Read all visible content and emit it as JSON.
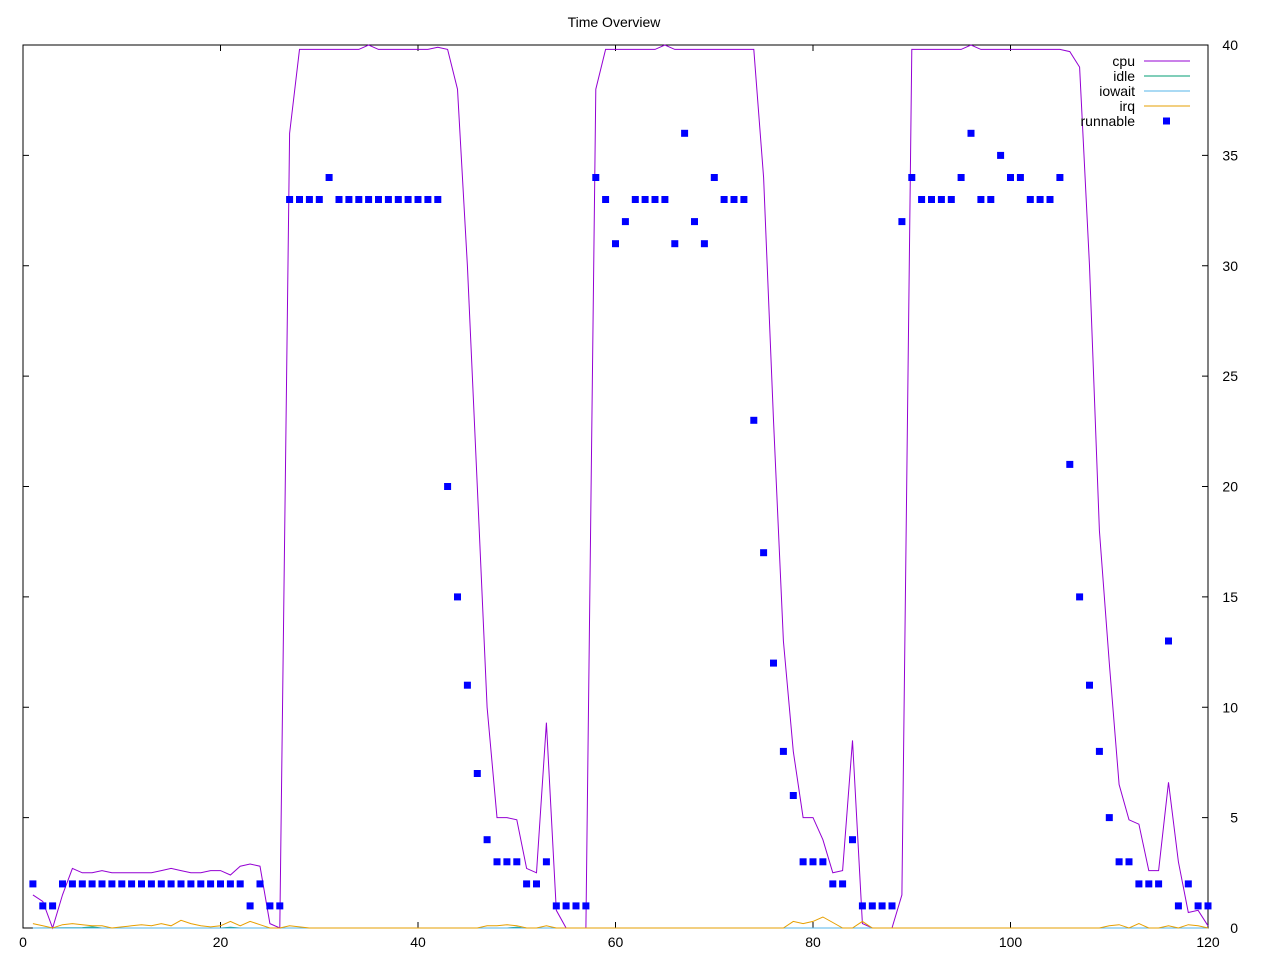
{
  "chart_data": {
    "type": "line",
    "title": "Time Overview",
    "xlim": [
      0,
      120
    ],
    "ylim": [
      0,
      40
    ],
    "x_ticks": [
      0,
      20,
      40,
      60,
      80,
      100,
      120
    ],
    "y_ticks": [
      0,
      5,
      10,
      15,
      20,
      25,
      30,
      35,
      40
    ],
    "y_axis_side": "right",
    "grid": false,
    "legend_position": "top-right",
    "series": [
      {
        "name": "cpu",
        "style": "line",
        "color": "#9400d3",
        "points": [
          [
            1,
            1.5
          ],
          [
            2,
            1.2
          ],
          [
            3,
            0
          ],
          [
            4,
            1.5
          ],
          [
            5,
            2.7
          ],
          [
            6,
            2.5
          ],
          [
            7,
            2.5
          ],
          [
            8,
            2.6
          ],
          [
            9,
            2.5
          ],
          [
            10,
            2.5
          ],
          [
            11,
            2.5
          ],
          [
            12,
            2.5
          ],
          [
            13,
            2.5
          ],
          [
            14,
            2.6
          ],
          [
            15,
            2.7
          ],
          [
            16,
            2.6
          ],
          [
            17,
            2.5
          ],
          [
            18,
            2.5
          ],
          [
            19,
            2.6
          ],
          [
            20,
            2.6
          ],
          [
            21,
            2.4
          ],
          [
            22,
            2.8
          ],
          [
            23,
            2.9
          ],
          [
            24,
            2.8
          ],
          [
            25,
            0.2
          ],
          [
            26,
            0
          ],
          [
            27,
            36
          ],
          [
            28,
            39.8
          ],
          [
            29,
            39.8
          ],
          [
            30,
            39.8
          ],
          [
            31,
            39.8
          ],
          [
            32,
            39.8
          ],
          [
            33,
            39.8
          ],
          [
            34,
            39.8
          ],
          [
            35,
            40
          ],
          [
            36,
            39.8
          ],
          [
            37,
            39.8
          ],
          [
            38,
            39.8
          ],
          [
            39,
            39.8
          ],
          [
            40,
            39.8
          ],
          [
            41,
            39.8
          ],
          [
            42,
            39.9
          ],
          [
            43,
            39.8
          ],
          [
            44,
            38
          ],
          [
            45,
            30
          ],
          [
            46,
            20
          ],
          [
            47,
            10
          ],
          [
            48,
            5
          ],
          [
            49,
            5
          ],
          [
            50,
            4.9
          ],
          [
            51,
            2.7
          ],
          [
            52,
            2.5
          ],
          [
            53,
            9.3
          ],
          [
            54,
            0.8
          ],
          [
            55,
            0
          ],
          [
            56,
            0
          ],
          [
            57,
            0
          ],
          [
            58,
            38
          ],
          [
            59,
            39.8
          ],
          [
            60,
            39.8
          ],
          [
            61,
            39.8
          ],
          [
            62,
            39.8
          ],
          [
            63,
            39.8
          ],
          [
            64,
            39.8
          ],
          [
            65,
            40
          ],
          [
            66,
            39.8
          ],
          [
            67,
            39.8
          ],
          [
            68,
            39.8
          ],
          [
            69,
            39.8
          ],
          [
            70,
            39.8
          ],
          [
            71,
            39.8
          ],
          [
            72,
            39.8
          ],
          [
            73,
            39.8
          ],
          [
            74,
            39.8
          ],
          [
            75,
            34
          ],
          [
            76,
            23
          ],
          [
            77,
            13
          ],
          [
            78,
            8
          ],
          [
            79,
            5
          ],
          [
            80,
            5
          ],
          [
            81,
            4
          ],
          [
            82,
            2.5
          ],
          [
            83,
            2.6
          ],
          [
            84,
            8.5
          ],
          [
            85,
            0.2
          ],
          [
            86,
            0
          ],
          [
            87,
            0
          ],
          [
            88,
            0
          ],
          [
            89,
            1.5
          ],
          [
            90,
            39.8
          ],
          [
            91,
            39.8
          ],
          [
            92,
            39.8
          ],
          [
            93,
            39.8
          ],
          [
            94,
            39.8
          ],
          [
            95,
            39.8
          ],
          [
            96,
            40
          ],
          [
            97,
            39.8
          ],
          [
            98,
            39.8
          ],
          [
            99,
            39.8
          ],
          [
            100,
            39.8
          ],
          [
            101,
            39.8
          ],
          [
            102,
            39.8
          ],
          [
            103,
            39.8
          ],
          [
            104,
            39.8
          ],
          [
            105,
            39.8
          ],
          [
            106,
            39.7
          ],
          [
            107,
            39
          ],
          [
            108,
            30
          ],
          [
            109,
            18
          ],
          [
            110,
            12
          ],
          [
            111,
            6.5
          ],
          [
            112,
            4.9
          ],
          [
            113,
            4.7
          ],
          [
            114,
            2.6
          ],
          [
            115,
            2.6
          ],
          [
            116,
            6.6
          ],
          [
            117,
            3
          ],
          [
            118,
            0.7
          ],
          [
            119,
            0.8
          ],
          [
            120,
            0.1
          ]
        ]
      },
      {
        "name": "idle",
        "style": "line",
        "color": "#009e73",
        "points": [
          [
            1,
            0
          ],
          [
            6,
            0.02
          ],
          [
            7,
            0.05
          ],
          [
            8,
            0
          ],
          [
            20,
            0
          ],
          [
            21,
            0.03
          ],
          [
            22,
            0
          ],
          [
            49,
            0
          ],
          [
            50,
            0.03
          ],
          [
            51,
            0
          ],
          [
            120,
            0
          ]
        ]
      },
      {
        "name": "iowait",
        "style": "line",
        "color": "#56b4e9",
        "points": [
          [
            1,
            0
          ],
          [
            120,
            0
          ]
        ]
      },
      {
        "name": "irq",
        "style": "line",
        "color": "#e69f00",
        "points": [
          [
            1,
            0.2
          ],
          [
            2,
            0.1
          ],
          [
            3,
            0
          ],
          [
            4,
            0.15
          ],
          [
            5,
            0.2
          ],
          [
            6,
            0.15
          ],
          [
            7,
            0.1
          ],
          [
            8,
            0.1
          ],
          [
            9,
            0
          ],
          [
            10,
            0.05
          ],
          [
            11,
            0.1
          ],
          [
            12,
            0.15
          ],
          [
            13,
            0.1
          ],
          [
            14,
            0.2
          ],
          [
            15,
            0.1
          ],
          [
            16,
            0.35
          ],
          [
            17,
            0.2
          ],
          [
            18,
            0.1
          ],
          [
            19,
            0.05
          ],
          [
            20,
            0.1
          ],
          [
            21,
            0.3
          ],
          [
            22,
            0.1
          ],
          [
            23,
            0.3
          ],
          [
            24,
            0.15
          ],
          [
            25,
            0
          ],
          [
            26,
            0
          ],
          [
            27,
            0.1
          ],
          [
            28,
            0.05
          ],
          [
            29,
            0
          ],
          [
            45,
            0
          ],
          [
            46,
            0
          ],
          [
            47,
            0.1
          ],
          [
            48,
            0.1
          ],
          [
            49,
            0.15
          ],
          [
            50,
            0.1
          ],
          [
            51,
            0
          ],
          [
            52,
            0
          ],
          [
            53,
            0.1
          ],
          [
            54,
            0
          ],
          [
            55,
            0
          ],
          [
            56,
            0
          ],
          [
            57,
            0
          ],
          [
            58,
            0
          ],
          [
            76,
            0
          ],
          [
            77,
            0
          ],
          [
            78,
            0.3
          ],
          [
            79,
            0.2
          ],
          [
            80,
            0.3
          ],
          [
            81,
            0.5
          ],
          [
            82,
            0.25
          ],
          [
            83,
            0
          ],
          [
            84,
            0
          ],
          [
            85,
            0.3
          ],
          [
            86,
            0
          ],
          [
            87,
            0
          ],
          [
            109,
            0
          ],
          [
            110,
            0.1
          ],
          [
            111,
            0.15
          ],
          [
            112,
            0
          ],
          [
            113,
            0.2
          ],
          [
            114,
            0
          ],
          [
            115,
            0
          ],
          [
            116,
            0.1
          ],
          [
            117,
            0
          ],
          [
            118,
            0.15
          ],
          [
            119,
            0.1
          ],
          [
            120,
            0
          ]
        ]
      },
      {
        "name": "runnable",
        "style": "points",
        "color": "#0000ff",
        "points": [
          [
            1,
            2
          ],
          [
            2,
            1
          ],
          [
            3,
            1
          ],
          [
            4,
            2
          ],
          [
            5,
            2
          ],
          [
            6,
            2
          ],
          [
            7,
            2
          ],
          [
            8,
            2
          ],
          [
            9,
            2
          ],
          [
            10,
            2
          ],
          [
            11,
            2
          ],
          [
            12,
            2
          ],
          [
            13,
            2
          ],
          [
            14,
            2
          ],
          [
            15,
            2
          ],
          [
            16,
            2
          ],
          [
            17,
            2
          ],
          [
            18,
            2
          ],
          [
            19,
            2
          ],
          [
            20,
            2
          ],
          [
            21,
            2
          ],
          [
            22,
            2
          ],
          [
            23,
            1
          ],
          [
            24,
            2
          ],
          [
            25,
            1
          ],
          [
            26,
            1
          ],
          [
            27,
            33
          ],
          [
            28,
            33
          ],
          [
            29,
            33
          ],
          [
            30,
            33
          ],
          [
            31,
            34
          ],
          [
            32,
            33
          ],
          [
            33,
            33
          ],
          [
            34,
            33
          ],
          [
            35,
            33
          ],
          [
            36,
            33
          ],
          [
            37,
            33
          ],
          [
            38,
            33
          ],
          [
            39,
            33
          ],
          [
            40,
            33
          ],
          [
            41,
            33
          ],
          [
            42,
            33
          ],
          [
            43,
            20
          ],
          [
            44,
            15
          ],
          [
            45,
            11
          ],
          [
            46,
            7
          ],
          [
            47,
            4
          ],
          [
            48,
            3
          ],
          [
            49,
            3
          ],
          [
            50,
            3
          ],
          [
            51,
            2
          ],
          [
            52,
            2
          ],
          [
            53,
            3
          ],
          [
            54,
            1
          ],
          [
            55,
            1
          ],
          [
            56,
            1
          ],
          [
            57,
            1
          ],
          [
            58,
            34
          ],
          [
            59,
            33
          ],
          [
            60,
            31
          ],
          [
            61,
            32
          ],
          [
            62,
            33
          ],
          [
            63,
            33
          ],
          [
            64,
            33
          ],
          [
            65,
            33
          ],
          [
            66,
            31
          ],
          [
            67,
            36
          ],
          [
            68,
            32
          ],
          [
            69,
            31
          ],
          [
            70,
            34
          ],
          [
            71,
            33
          ],
          [
            72,
            33
          ],
          [
            73,
            33
          ],
          [
            74,
            23
          ],
          [
            75,
            17
          ],
          [
            76,
            12
          ],
          [
            77,
            8
          ],
          [
            78,
            6
          ],
          [
            79,
            3
          ],
          [
            80,
            3
          ],
          [
            81,
            3
          ],
          [
            82,
            2
          ],
          [
            83,
            2
          ],
          [
            84,
            4
          ],
          [
            85,
            1
          ],
          [
            86,
            1
          ],
          [
            87,
            1
          ],
          [
            88,
            1
          ],
          [
            89,
            32
          ],
          [
            90,
            34
          ],
          [
            91,
            33
          ],
          [
            92,
            33
          ],
          [
            93,
            33
          ],
          [
            94,
            33
          ],
          [
            95,
            34
          ],
          [
            96,
            36
          ],
          [
            97,
            33
          ],
          [
            98,
            33
          ],
          [
            99,
            35
          ],
          [
            100,
            34
          ],
          [
            101,
            34
          ],
          [
            102,
            33
          ],
          [
            103,
            33
          ],
          [
            104,
            33
          ],
          [
            105,
            34
          ],
          [
            106,
            21
          ],
          [
            107,
            15
          ],
          [
            108,
            11
          ],
          [
            109,
            8
          ],
          [
            110,
            5
          ],
          [
            111,
            3
          ],
          [
            112,
            3
          ],
          [
            113,
            2
          ],
          [
            114,
            2
          ],
          [
            115,
            2
          ],
          [
            116,
            13
          ],
          [
            117,
            1
          ],
          [
            118,
            2
          ],
          [
            119,
            1
          ],
          [
            120,
            1
          ]
        ]
      }
    ]
  }
}
